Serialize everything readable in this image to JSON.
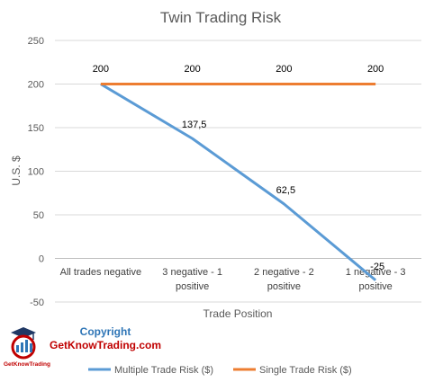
{
  "chart_data": {
    "type": "line",
    "title": "Twin Trading Risk",
    "xlabel": "Trade Position",
    "ylabel": "U.S. $",
    "ylim": [
      -50,
      250
    ],
    "y_ticks": [
      "250",
      "200",
      "150",
      "100",
      "50",
      "0",
      "-50"
    ],
    "grid": true,
    "legend_position": "bottom",
    "categories": [
      [
        "All trades negative"
      ],
      [
        "3 negative - 1",
        "positive"
      ],
      [
        "2 negative - 2",
        "positive"
      ],
      [
        "1 negative - 3",
        "positive"
      ]
    ],
    "series": [
      {
        "name": "Multiple Trade Risk ($)",
        "values": [
          200,
          137.5,
          62.5,
          -25
        ],
        "labels": [
          "",
          "137,5",
          "62,5",
          "-25"
        ],
        "color": "#5b9bd5"
      },
      {
        "name": "Single Trade Risk ($)",
        "values": [
          200,
          200,
          200,
          200
        ],
        "labels": [
          "200",
          "200",
          "200",
          "200"
        ],
        "color": "#ed7d31"
      }
    ]
  },
  "watermark": {
    "line1": "Copyright",
    "line2": "GetKnowTrading.com",
    "logo_text": "GetKnowTrading"
  }
}
